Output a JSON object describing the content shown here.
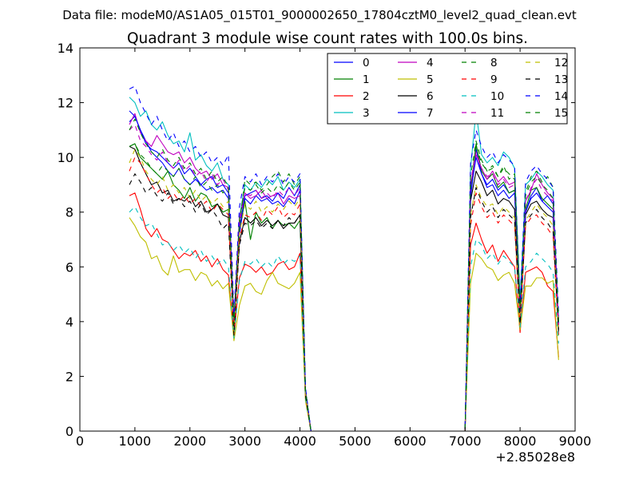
{
  "suptitle": "Data file: modeM0/AS1A05_015T01_9000002650_17804cztM0_level2_quad_clean.evt",
  "chart_data": {
    "type": "line",
    "title": "Quadrant 3 module wise count rates with 100.0s bins.",
    "xlabel": "",
    "ylabel": "",
    "x_offset_label": "+2.85028e8",
    "xlim": [
      0,
      9000
    ],
    "ylim": [
      0,
      14
    ],
    "xticks": [
      0,
      1000,
      2000,
      3000,
      4000,
      5000,
      6000,
      7000,
      8000,
      9000
    ],
    "yticks": [
      0,
      2,
      4,
      6,
      8,
      10,
      12,
      14
    ],
    "grid": false,
    "legend_position": "top-right",
    "legend_columns": 4,
    "x": [
      900,
      1000,
      1100,
      1200,
      1300,
      1400,
      1500,
      1600,
      1700,
      1800,
      1900,
      2000,
      2100,
      2200,
      2300,
      2400,
      2500,
      2600,
      2700,
      2800,
      2900,
      3000,
      3100,
      3200,
      3300,
      3400,
      3500,
      3600,
      3700,
      3800,
      3900,
      4000,
      4100,
      4200,
      4300,
      4400,
      5000,
      6000,
      6900,
      7000,
      7100,
      7200,
      7300,
      7400,
      7500,
      7600,
      7700,
      7800,
      7900,
      8000,
      8100,
      8200,
      8300,
      8400,
      8500,
      8600,
      8700
    ],
    "series": [
      {
        "name": "0",
        "color": "#0000ff",
        "dash": "solid",
        "values": [
          11.3,
          11.5,
          11.0,
          10.6,
          10.2,
          10.0,
          9.8,
          9.5,
          9.3,
          9.6,
          9.2,
          9.0,
          9.2,
          9.0,
          8.8,
          8.9,
          8.7,
          8.8,
          8.5,
          3.8,
          7.2,
          8.5,
          8.3,
          8.6,
          8.4,
          8.5,
          8.3,
          8.4,
          8.2,
          8.5,
          8.3,
          8.8,
          1.5,
          0,
          0,
          0,
          0,
          0,
          0,
          0,
          8.5,
          10.3,
          9.4,
          9.0,
          9.2,
          8.8,
          9.0,
          8.7,
          8.8,
          4.3,
          8.0,
          8.6,
          8.9,
          8.4,
          8.6,
          8.3,
          4.0
        ]
      },
      {
        "name": "1",
        "color": "#008000",
        "dash": "solid",
        "values": [
          10.4,
          10.5,
          10.0,
          9.8,
          9.6,
          9.4,
          9.2,
          9.5,
          9.0,
          8.8,
          8.5,
          8.9,
          8.4,
          8.7,
          8.6,
          8.2,
          8.3,
          8.0,
          8.1,
          3.6,
          7.4,
          8.4,
          7.0,
          8.0,
          7.6,
          7.8,
          7.4,
          7.7,
          7.5,
          7.6,
          7.4,
          7.7,
          1.4,
          0,
          0,
          0,
          0,
          0,
          0,
          0,
          8.7,
          10.5,
          9.5,
          9.2,
          9.4,
          8.9,
          9.1,
          8.7,
          8.8,
          4.2,
          8.1,
          8.8,
          8.9,
          8.5,
          8.3,
          8.1,
          4.1
        ]
      },
      {
        "name": "2",
        "color": "#ff0000",
        "dash": "solid",
        "values": [
          8.6,
          8.7,
          8.1,
          7.4,
          7.1,
          7.4,
          7.0,
          6.9,
          6.6,
          6.3,
          6.5,
          6.4,
          6.6,
          6.2,
          6.4,
          6.0,
          6.3,
          5.9,
          5.7,
          3.5,
          5.6,
          6.1,
          6.0,
          5.8,
          6.0,
          5.7,
          5.8,
          6.1,
          6.2,
          5.9,
          6.0,
          6.5,
          1.2,
          0,
          0,
          0,
          0,
          0,
          0,
          0,
          6.8,
          7.6,
          7.0,
          6.5,
          6.8,
          6.2,
          6.6,
          6.3,
          6.0,
          3.6,
          5.8,
          5.9,
          6.0,
          5.8,
          5.3,
          5.1,
          2.7
        ]
      },
      {
        "name": "3",
        "color": "#00bfbf",
        "dash": "solid",
        "values": [
          12.2,
          12.0,
          11.5,
          11.7,
          11.2,
          11.0,
          11.3,
          10.8,
          10.5,
          10.6,
          10.2,
          10.9,
          9.9,
          10.1,
          9.7,
          9.5,
          9.8,
          9.2,
          9.0,
          4.0,
          7.8,
          9.0,
          8.8,
          9.1,
          8.9,
          9.2,
          9.0,
          9.3,
          8.8,
          9.1,
          8.9,
          9.2,
          1.5,
          0,
          0,
          0,
          0,
          0,
          0,
          0,
          9.6,
          11.7,
          10.1,
          9.8,
          10.0,
          9.7,
          10.2,
          10.0,
          9.6,
          4.8,
          9.0,
          9.2,
          9.5,
          9.3,
          9.0,
          8.8,
          3.9
        ]
      },
      {
        "name": "4",
        "color": "#bf00bf",
        "dash": "solid",
        "values": [
          11.2,
          11.6,
          10.9,
          10.6,
          10.4,
          10.8,
          10.5,
          10.2,
          10.1,
          10.2,
          9.8,
          10.0,
          9.6,
          9.4,
          9.5,
          9.2,
          9.4,
          9.0,
          8.9,
          4.1,
          7.8,
          8.7,
          8.5,
          8.6,
          8.8,
          8.5,
          8.6,
          8.7,
          8.3,
          8.6,
          8.5,
          8.6,
          1.5,
          0,
          0,
          0,
          0,
          0,
          0,
          0,
          9.0,
          10.1,
          9.6,
          9.2,
          9.5,
          9.1,
          9.3,
          9.0,
          9.1,
          4.4,
          8.4,
          8.8,
          9.4,
          9.0,
          8.7,
          8.5,
          3.9
        ]
      },
      {
        "name": "5",
        "color": "#bfbf00",
        "dash": "solid",
        "values": [
          7.8,
          7.5,
          7.1,
          6.9,
          6.3,
          6.4,
          5.9,
          5.7,
          6.4,
          5.8,
          5.9,
          5.9,
          5.5,
          5.8,
          5.7,
          5.3,
          5.5,
          5.2,
          5.4,
          3.3,
          4.6,
          5.3,
          5.4,
          5.1,
          5.0,
          5.5,
          5.8,
          5.4,
          5.3,
          5.2,
          5.4,
          5.8,
          1.1,
          0,
          0,
          0,
          0,
          0,
          0,
          0,
          5.4,
          6.5,
          6.3,
          6.0,
          5.9,
          5.5,
          5.7,
          5.8,
          5.4,
          3.7,
          5.3,
          5.3,
          5.6,
          5.6,
          5.4,
          5.5,
          2.6
        ]
      },
      {
        "name": "6",
        "color": "#000000",
        "dash": "solid",
        "values": [
          10.4,
          10.3,
          9.8,
          9.4,
          9.0,
          9.1,
          8.7,
          8.8,
          8.4,
          8.5,
          8.4,
          8.6,
          8.2,
          8.4,
          8.0,
          8.1,
          8.3,
          7.9,
          7.8,
          3.7,
          6.9,
          7.8,
          7.6,
          7.8,
          7.5,
          7.7,
          7.5,
          7.7,
          7.4,
          7.6,
          7.6,
          7.9,
          1.4,
          0,
          0,
          0,
          0,
          0,
          0,
          0,
          8.4,
          9.5,
          9.1,
          8.6,
          8.8,
          8.3,
          8.5,
          8.4,
          8.1,
          4.0,
          7.9,
          8.3,
          8.4,
          8.1,
          7.9,
          7.8,
          3.7
        ]
      },
      {
        "name": "7",
        "color": "#0000ff",
        "dash": "solid",
        "values": [
          11.7,
          11.5,
          11.0,
          10.5,
          10.3,
          10.2,
          10.0,
          9.8,
          9.6,
          9.8,
          9.4,
          9.6,
          9.3,
          9.0,
          9.2,
          9.3,
          8.9,
          9.0,
          8.7,
          3.9,
          7.4,
          8.6,
          8.7,
          8.8,
          8.5,
          8.6,
          8.4,
          8.7,
          8.5,
          8.9,
          8.6,
          9.0,
          1.5,
          0,
          0,
          0,
          0,
          0,
          0,
          0,
          8.7,
          10.0,
          9.4,
          8.9,
          9.0,
          8.6,
          8.8,
          8.5,
          8.7,
          4.5,
          8.0,
          8.5,
          8.7,
          8.4,
          8.2,
          8.0,
          3.9
        ]
      },
      {
        "name": "8",
        "color": "#008000",
        "dash": "dashed",
        "values": [
          10.4,
          10.5,
          10.1,
          9.9,
          9.6,
          9.4,
          9.7,
          9.5,
          9.3,
          9.6,
          9.2,
          9.0,
          9.3,
          8.9,
          9.1,
          8.8,
          9.0,
          8.7,
          8.9,
          3.7,
          7.5,
          9.2,
          9.0,
          9.1,
          8.8,
          9.0,
          9.3,
          9.5,
          9.1,
          9.4,
          9.0,
          9.3,
          1.5,
          0,
          0,
          0,
          0,
          0,
          0,
          0,
          9.0,
          10.4,
          9.8,
          9.5,
          9.6,
          9.3,
          9.7,
          9.2,
          9.4,
          4.6,
          8.7,
          9.3,
          9.5,
          9.1,
          9.3,
          8.9,
          4.3
        ]
      },
      {
        "name": "9",
        "color": "#ff0000",
        "dash": "dashed",
        "values": [
          9.5,
          10.0,
          9.8,
          9.4,
          9.0,
          8.7,
          8.9,
          8.5,
          8.7,
          8.4,
          8.6,
          8.3,
          8.5,
          8.2,
          8.4,
          8.0,
          8.3,
          8.1,
          7.9,
          3.6,
          7.0,
          7.9,
          7.8,
          8.0,
          7.7,
          8.1,
          7.9,
          8.2,
          7.8,
          8.0,
          7.9,
          8.3,
          1.3,
          0,
          0,
          0,
          0,
          0,
          0,
          0,
          7.5,
          8.7,
          8.2,
          7.8,
          8.0,
          7.6,
          7.9,
          7.7,
          7.5,
          3.9,
          7.5,
          7.8,
          7.9,
          7.6,
          7.4,
          7.1,
          3.5
        ]
      },
      {
        "name": "10",
        "color": "#00bfbf",
        "dash": "dashed",
        "values": [
          8.0,
          8.2,
          7.8,
          7.5,
          7.6,
          7.2,
          6.8,
          6.9,
          6.6,
          6.8,
          6.5,
          6.7,
          6.3,
          6.6,
          6.2,
          6.4,
          6.1,
          6.3,
          6.0,
          3.4,
          5.5,
          6.2,
          6.1,
          6.3,
          6.0,
          6.2,
          6.0,
          6.4,
          6.1,
          6.3,
          6.2,
          6.4,
          1.2,
          0,
          0,
          0,
          0,
          0,
          0,
          0,
          6.0,
          7.0,
          6.8,
          6.3,
          6.5,
          6.1,
          6.4,
          6.2,
          6.0,
          3.8,
          6.0,
          6.2,
          6.5,
          6.3,
          6.1,
          5.8,
          3.2
        ]
      },
      {
        "name": "11",
        "color": "#bf00bf",
        "dash": "dashed",
        "values": [
          11.0,
          11.2,
          10.6,
          10.4,
          10.1,
          9.9,
          10.2,
          9.8,
          9.6,
          9.9,
          9.5,
          9.7,
          9.3,
          9.5,
          9.1,
          9.4,
          9.0,
          9.2,
          8.8,
          3.8,
          7.6,
          8.7,
          8.6,
          8.8,
          8.5,
          8.7,
          8.5,
          8.8,
          8.6,
          8.9,
          8.6,
          8.9,
          1.4,
          0,
          0,
          0,
          0,
          0,
          0,
          0,
          9.1,
          10.2,
          9.6,
          9.3,
          9.4,
          9.0,
          9.2,
          8.9,
          9.0,
          4.3,
          8.4,
          8.9,
          9.2,
          8.8,
          8.6,
          8.4,
          3.9
        ]
      },
      {
        "name": "12",
        "color": "#bfbf00",
        "dash": "dashed",
        "values": [
          9.8,
          10.3,
          10.0,
          9.5,
          9.2,
          9.0,
          9.3,
          8.8,
          9.0,
          8.7,
          8.9,
          8.5,
          8.8,
          8.4,
          8.6,
          8.3,
          8.5,
          8.2,
          8.4,
          3.6,
          7.2,
          8.3,
          8.1,
          8.4,
          8.0,
          8.2,
          8.0,
          8.3,
          8.1,
          8.4,
          8.2,
          8.5,
          1.4,
          0,
          0,
          0,
          0,
          0,
          0,
          0,
          7.9,
          9.0,
          8.5,
          8.2,
          8.3,
          7.9,
          8.2,
          8.0,
          7.8,
          4.0,
          7.7,
          8.0,
          8.3,
          8.0,
          7.8,
          7.5,
          3.5
        ]
      },
      {
        "name": "13",
        "color": "#000000",
        "dash": "dashed",
        "values": [
          9.0,
          9.4,
          9.1,
          8.7,
          8.9,
          8.6,
          8.4,
          8.7,
          8.3,
          8.5,
          8.2,
          8.4,
          8.0,
          8.3,
          7.9,
          8.1,
          7.8,
          7.4,
          7.6,
          3.5,
          6.8,
          7.6,
          7.5,
          7.7,
          7.4,
          7.6,
          7.4,
          7.7,
          7.5,
          7.8,
          7.6,
          7.9,
          1.3,
          0,
          0,
          0,
          0,
          0,
          0,
          0,
          7.8,
          8.9,
          8.4,
          8.0,
          8.2,
          7.8,
          8.1,
          7.9,
          7.7,
          3.9,
          7.6,
          7.9,
          8.1,
          7.8,
          7.6,
          7.3,
          3.6
        ]
      },
      {
        "name": "14",
        "color": "#0000ff",
        "dash": "dashed",
        "values": [
          12.5,
          12.6,
          12.0,
          11.6,
          11.2,
          11.5,
          11.0,
          10.6,
          10.9,
          10.4,
          10.6,
          10.2,
          10.4,
          10.0,
          10.2,
          9.8,
          10.0,
          9.7,
          10.1,
          4.2,
          8.2,
          9.3,
          9.1,
          9.4,
          9.0,
          9.3,
          9.1,
          9.4,
          9.0,
          9.3,
          9.1,
          9.4,
          1.6,
          0,
          0,
          0,
          0,
          0,
          0,
          0,
          9.8,
          11.0,
          10.4,
          10.0,
          10.2,
          9.8,
          10.1,
          9.9,
          9.7,
          4.7,
          9.1,
          9.5,
          9.7,
          9.4,
          9.2,
          8.9,
          4.2
        ]
      },
      {
        "name": "15",
        "color": "#008000",
        "dash": "dashed",
        "values": [
          11.0,
          11.4,
          10.9,
          10.5,
          10.2,
          10.0,
          10.3,
          9.9,
          9.7,
          10.0,
          9.6,
          9.8,
          9.4,
          9.6,
          9.2,
          9.5,
          9.1,
          9.3,
          8.9,
          3.9,
          7.7,
          8.9,
          8.8,
          9.0,
          8.7,
          8.9,
          8.7,
          9.0,
          8.8,
          9.1,
          8.8,
          9.1,
          1.5,
          0,
          0,
          0,
          0,
          0,
          0,
          0,
          9.3,
          10.6,
          9.9,
          9.5,
          9.7,
          9.3,
          9.6,
          9.4,
          9.2,
          4.5,
          8.6,
          9.1,
          9.3,
          9.0,
          8.8,
          8.5,
          4.0
        ]
      }
    ]
  }
}
